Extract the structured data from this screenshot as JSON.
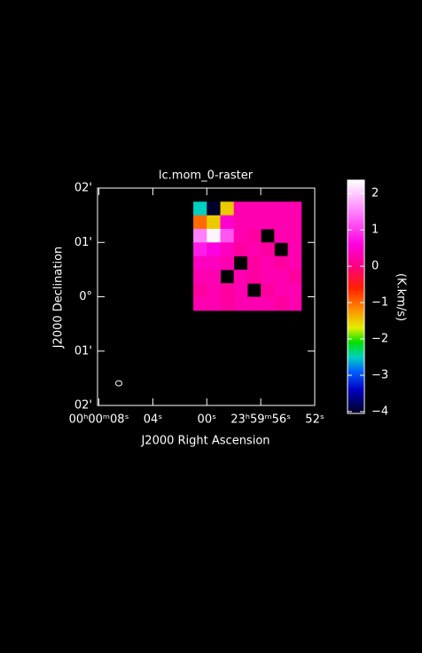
{
  "chart_data": {
    "type": "heatmap",
    "title": "lc.mom_0-raster",
    "x_label": "J2000 Right Ascension",
    "y_label": "J2000 Declination",
    "xlim": [
      8.1,
      -8
    ],
    "xticks": [
      {
        "value": 8,
        "label": "00ʰ00ᵐ08ˢ"
      },
      {
        "value": 4,
        "label": "04ˢ"
      },
      {
        "value": 0,
        "label": "00ˢ"
      },
      {
        "value": -4,
        "label": "23ʰ59ᵐ56ˢ"
      },
      {
        "value": -8,
        "label": "52ˢ"
      }
    ],
    "ylim": [
      -2,
      2
    ],
    "yticks": [
      {
        "value": 2,
        "label": "02'"
      },
      {
        "value": 1,
        "label": "01'"
      },
      {
        "value": 0,
        "label": "0°"
      },
      {
        "value": -1,
        "label": "01'"
      },
      {
        "value": -2,
        "label": "02'"
      }
    ],
    "x": [
      0.5,
      -0.5,
      -1.5,
      -2.5,
      -3.5,
      -4.5,
      -5.5,
      -6.5
    ],
    "y": [
      1.625,
      1.375,
      1.125,
      0.875,
      0.625,
      0.375,
      0.125,
      -0.125
    ],
    "z": [
      [
        -2.5,
        -4,
        -1.5,
        0.3,
        0.3,
        0.3,
        0.3,
        0.3
      ],
      [
        -1,
        -1.5,
        0.5,
        0.3,
        0.3,
        0.3,
        0.3,
        0.3
      ],
      [
        1.5,
        2.3,
        1.2,
        0.3,
        0.2,
        null,
        0.3,
        0.3
      ],
      [
        0.8,
        0.6,
        0.4,
        0.2,
        0.3,
        0.2,
        null,
        0.3
      ],
      [
        0.4,
        0.4,
        0.3,
        null,
        0.2,
        0.3,
        0.2,
        0.3
      ],
      [
        0.3,
        0.3,
        null,
        0.3,
        0.2,
        0.3,
        0.3,
        0.2
      ],
      [
        0.2,
        0.3,
        0.2,
        0.3,
        null,
        0.2,
        0.3,
        0.3
      ],
      [
        0.3,
        0.3,
        0.2,
        0.3,
        0.3,
        0.3,
        0.2,
        0.3
      ]
    ],
    "colorbar": {
      "label": "(K.km/s)",
      "ylim": [
        -4.05,
        2.37
      ],
      "yticks": [
        {
          "value": 2,
          "label": "2"
        },
        {
          "value": 1,
          "label": "1"
        },
        {
          "value": 0,
          "label": "0"
        },
        {
          "value": -1,
          "label": "−1"
        },
        {
          "value": -2,
          "label": "−2"
        },
        {
          "value": -3,
          "label": "−3"
        },
        {
          "value": -4,
          "label": "−4"
        }
      ],
      "colormap": [
        {
          "value": -4.05,
          "color": "#000020"
        },
        {
          "value": -3.4,
          "color": "#0000c0"
        },
        {
          "value": -2.9,
          "color": "#0060ff"
        },
        {
          "value": -2.5,
          "color": "#00d0c0"
        },
        {
          "value": -2.1,
          "color": "#00e000"
        },
        {
          "value": -1.7,
          "color": "#e0f000"
        },
        {
          "value": -1.2,
          "color": "#ff9000"
        },
        {
          "value": -0.6,
          "color": "#ff2000"
        },
        {
          "value": 0,
          "color": "#ff0080"
        },
        {
          "value": 0.6,
          "color": "#ff00e0"
        },
        {
          "value": 1.6,
          "color": "#ff90ff"
        },
        {
          "value": 2.37,
          "color": "#ffffff"
        }
      ]
    }
  }
}
